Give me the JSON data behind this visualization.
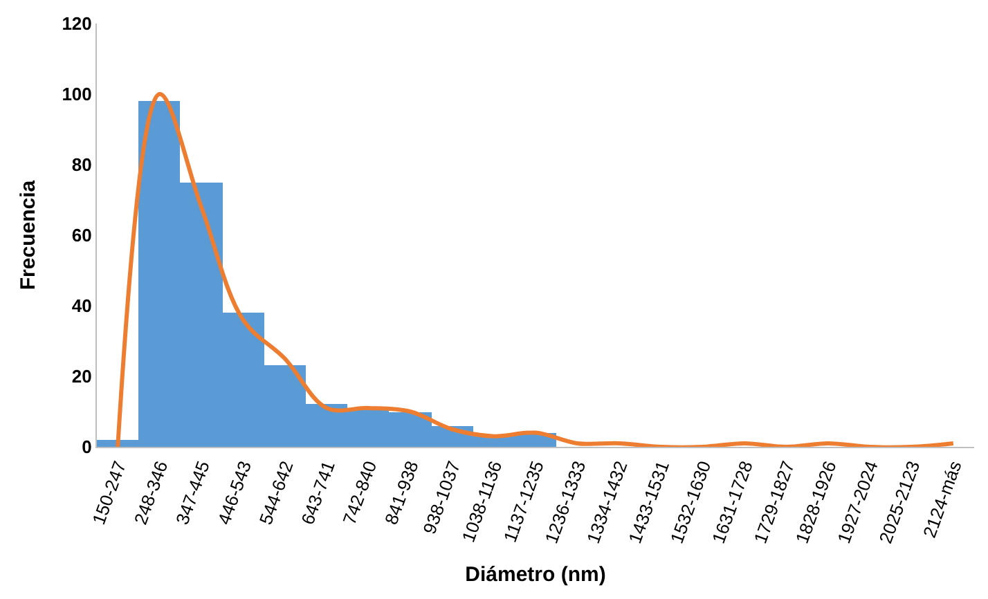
{
  "chart_data": {
    "type": "bar",
    "xlabel": "Diámetro (nm)",
    "ylabel": "Frecuencia",
    "categories": [
      "150-247",
      "248-346",
      "347-445",
      "446-543",
      "544-642",
      "643-741",
      "742-840",
      "841-938",
      "938-1037",
      "1038-1136",
      "1137-1235",
      "1236-1333",
      "1334-1432",
      "1433-1531",
      "1532-1630",
      "1631-1728",
      "1729-1827",
      "1828-1926",
      "1927-2024",
      "2025-2123",
      "2124-más"
    ],
    "series": [
      {
        "color": "#5b9bd5",
        "values": [
          2,
          98,
          75,
          38,
          23,
          12,
          11,
          10,
          6,
          3,
          4,
          0,
          0,
          0,
          0,
          0,
          0,
          0,
          0,
          0,
          0
        ]
      },
      {
        "type": "line",
        "color": "#ed7d31",
        "values": [
          0,
          100,
          68,
          36,
          25,
          11,
          11,
          10,
          5,
          3,
          4,
          1,
          1,
          0,
          0,
          1,
          0,
          1,
          0,
          0,
          1
        ]
      }
    ],
    "ylim": [
      0,
      120
    ],
    "yticks": [
      0,
      20,
      40,
      60,
      80,
      100,
      120
    ]
  }
}
